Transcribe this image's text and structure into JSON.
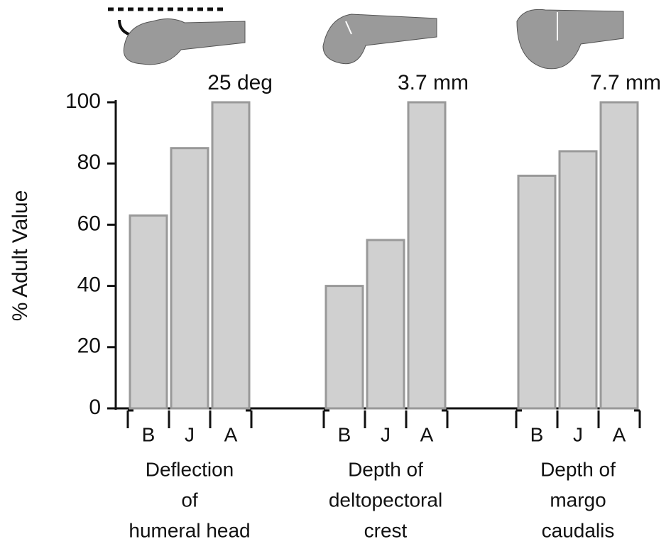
{
  "chart_data": {
    "type": "bar",
    "y_label": "% Adult Value",
    "ylim": [
      0,
      100
    ],
    "yticks": [
      0,
      20,
      40,
      60,
      80,
      100
    ],
    "color": "#d0d0d0",
    "groups": [
      {
        "label_lines": [
          "Deflection",
          "of",
          "humeral head"
        ],
        "annotation": "25 deg",
        "categories": [
          "B",
          "J",
          "A"
        ],
        "values": [
          63,
          85,
          100
        ]
      },
      {
        "label_lines": [
          "Depth of",
          "deltopectoral",
          "crest"
        ],
        "annotation": "3.7 mm",
        "categories": [
          "B",
          "J",
          "A"
        ],
        "values": [
          40,
          55,
          100
        ]
      },
      {
        "label_lines": [
          "Depth of",
          "margo",
          "caudalis"
        ],
        "annotation": "7.7 mm",
        "categories": [
          "B",
          "J",
          "A"
        ],
        "values": [
          76,
          84,
          100
        ]
      }
    ]
  }
}
